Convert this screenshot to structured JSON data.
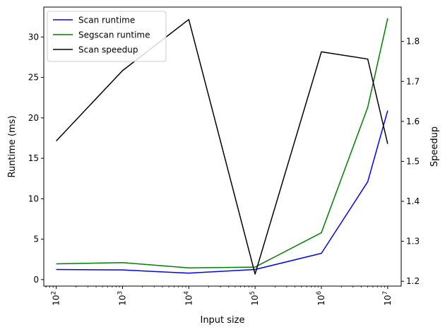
{
  "chart_data": {
    "type": "line",
    "xlabel": "Input size",
    "ylabel_left": "Runtime (ms)",
    "ylabel_right": "Speedup",
    "xscale": "log",
    "xlim": [
      65,
      16000000
    ],
    "ylim_left": [
      -0.8,
      33.7
    ],
    "ylim_right": [
      1.188,
      1.886
    ],
    "x_ticks": [
      100,
      1000,
      10000,
      100000,
      1000000,
      10000000
    ],
    "x_tick_labels": [
      "10",
      "10",
      "10",
      "10",
      "10",
      "10"
    ],
    "x_tick_exponents": [
      "2",
      "3",
      "4",
      "5",
      "6",
      "7"
    ],
    "y_left_ticks": [
      0,
      5,
      10,
      15,
      20,
      25,
      30
    ],
    "y_left_tick_labels": [
      "0",
      "5",
      "10",
      "15",
      "20",
      "25",
      "30"
    ],
    "y_right_ticks": [
      1.2,
      1.3,
      1.4,
      1.5,
      1.6,
      1.7,
      1.8
    ],
    "y_right_tick_labels": [
      "1.2",
      "1.3",
      "1.4",
      "1.5",
      "1.6",
      "1.7",
      "1.8"
    ],
    "x": [
      100,
      1000,
      10000,
      100000,
      1000000,
      5000000,
      10000000
    ],
    "legend_position": "top-left",
    "series": [
      {
        "name": "Scan runtime",
        "axis": "left",
        "color": "#0000ff",
        "values": [
          1.25,
          1.2,
          0.8,
          1.25,
          3.25,
          12.1,
          20.9
        ]
      },
      {
        "name": "Segscan runtime",
        "axis": "left",
        "color": "#008000",
        "values": [
          1.95,
          2.1,
          1.45,
          1.55,
          5.8,
          21.3,
          32.3
        ]
      },
      {
        "name": "Scan speedup",
        "axis": "right",
        "color": "#000000",
        "values": [
          1.551,
          1.727,
          1.855,
          1.218,
          1.774,
          1.756,
          1.544
        ]
      }
    ]
  }
}
